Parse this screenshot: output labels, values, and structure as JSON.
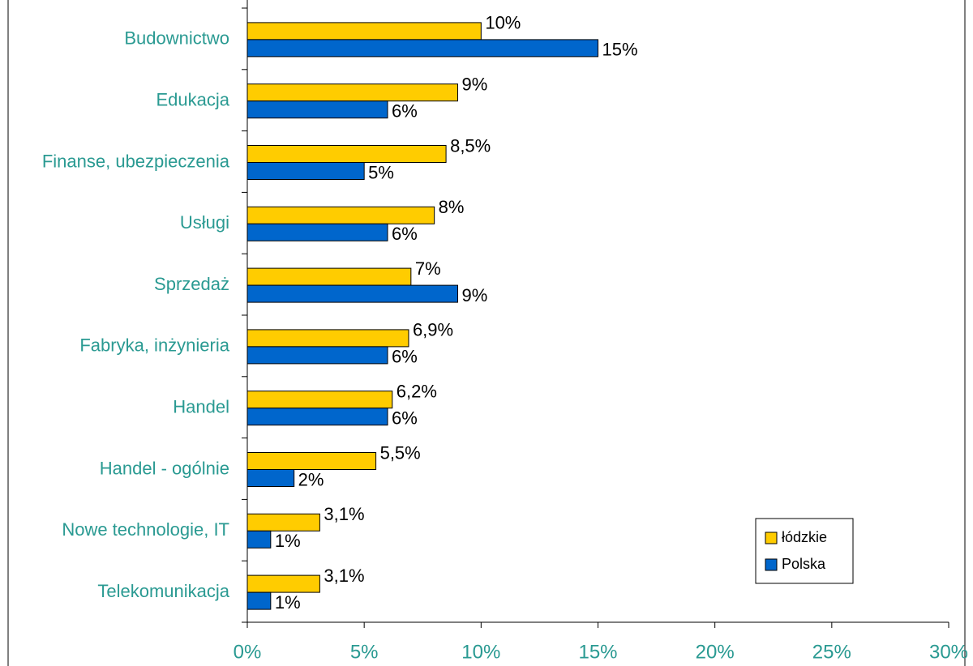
{
  "chart_data": {
    "type": "barh",
    "categories": [
      "Budownictwo",
      "Edukacja",
      "Finanse, ubezpieczenia",
      "Usługi",
      "Sprzedaż",
      "Fabryka, inżynieria",
      "Handel",
      "Handel - ogólnie",
      "Nowe technologie, IT",
      "Telekomunikacja"
    ],
    "series": [
      {
        "name": "łódzkie",
        "color": "#ffcc00",
        "values": [
          10,
          9,
          8.5,
          8,
          7,
          6.9,
          6.2,
          5.5,
          3.1,
          3.1
        ],
        "value_labels": [
          "10%",
          "9%",
          "8,5%",
          "8%",
          "7%",
          "6,9%",
          "6,2%",
          "5,5%",
          "3,1%",
          "3,1%"
        ]
      },
      {
        "name": "Polska",
        "color": "#0066cc",
        "values": [
          15,
          6,
          5,
          6,
          9,
          6,
          6,
          2,
          1,
          1
        ],
        "value_labels": [
          "15%",
          "6%",
          "5%",
          "6%",
          "9%",
          "6%",
          "6%",
          "2%",
          "1%",
          "1%"
        ]
      }
    ],
    "xlim": [
      0,
      30
    ],
    "xticks": [
      {
        "value": 0,
        "label": "0%"
      },
      {
        "value": 5,
        "label": "5%"
      },
      {
        "value": 10,
        "label": "10%"
      },
      {
        "value": 15,
        "label": "15%"
      },
      {
        "value": 20,
        "label": "20%"
      },
      {
        "value": 25,
        "label": "25%"
      },
      {
        "value": 30,
        "label": "30%"
      }
    ],
    "legend": "lower right",
    "grid": false
  }
}
